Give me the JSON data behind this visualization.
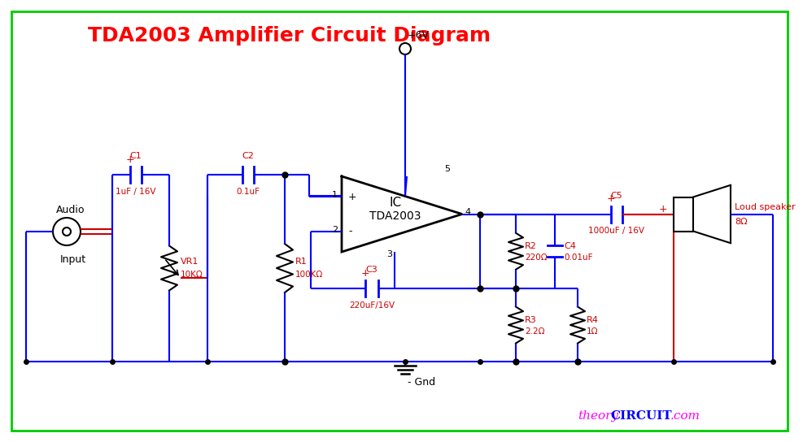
{
  "title": "TDA2003 Amplifier Circuit Diagram",
  "title_color": "#FF0000",
  "title_fontsize": 18,
  "bg_color": "#FFFFFF",
  "border_color": "#00CC00",
  "wire_color": "#0000FF",
  "red_wire_color": "#CC0000",
  "component_color": "#000000",
  "label_color": "#CC0000",
  "website_theory_color": "#FF00FF",
  "website_circuit_color": "#0000FF",
  "supply_label": "+6V",
  "gnd_label": "- Gnd",
  "website_theory": "theory",
  "website_circuit": "CIRCUIT",
  "website_com": ".com",
  "C1_label": "C1",
  "C1_value": "1uF / 16V",
  "C2_label": "C2",
  "C2_value": "0.1uF",
  "C3_label": "C3",
  "C3_value": "220uF/16V",
  "C4_label": "C4",
  "C4_value": "0.01uF",
  "C5_label": "C5",
  "C5_value": "1000uF / 16V",
  "R1_label": "R1",
  "R1_value": "100KΩ",
  "R2_label": "R2",
  "R2_value": "220Ω",
  "R3_label": "R3",
  "R3_value": "2.2Ω",
  "R4_label": "R4",
  "R4_value": "1Ω",
  "VR1_label": "VR1",
  "VR1_value": "10KΩ",
  "IC_label": "IC\nTDA2003",
  "spk_label": "Loud speaker\n8Ω",
  "audio_label1": "Audio",
  "audio_label2": "Input"
}
